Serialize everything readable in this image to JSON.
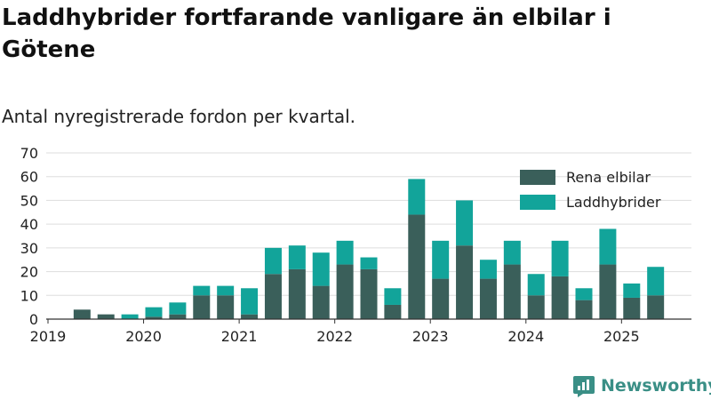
{
  "title": "Laddhybrider fortfarande vanligare än elbilar i Götene",
  "subtitle": "Antal nyregistrerade fordon per kvartal.",
  "brand": "Newsworthy",
  "colors": {
    "elbilar": "#3a5f5a",
    "laddhybrider": "#12a49a",
    "grid": "#dddddd",
    "text": "#222222"
  },
  "chart_data": {
    "type": "bar",
    "stacked": true,
    "categories": [
      "2019 Q1",
      "2019 Q2",
      "2019 Q3",
      "2019 Q4",
      "2020 Q1",
      "2020 Q2",
      "2020 Q3",
      "2020 Q4",
      "2021 Q1",
      "2021 Q2",
      "2021 Q3",
      "2021 Q4",
      "2022 Q1",
      "2022 Q2",
      "2022 Q3",
      "2022 Q4",
      "2023 Q1",
      "2023 Q2",
      "2023 Q3",
      "2023 Q4",
      "2024 Q1",
      "2024 Q2",
      "2024 Q3",
      "2024 Q4",
      "2025 Q1",
      "2025 Q2",
      "2025 Q3"
    ],
    "series": [
      {
        "name": "Rena elbilar",
        "values": [
          0,
          4,
          2,
          0,
          1,
          2,
          10,
          10,
          2,
          19,
          21,
          14,
          23,
          21,
          6,
          44,
          17,
          31,
          17,
          23,
          10,
          18,
          8,
          23,
          9,
          10,
          0
        ]
      },
      {
        "name": "Laddhybrider",
        "values": [
          0,
          0,
          0,
          2,
          4,
          5,
          4,
          4,
          11,
          11,
          10,
          14,
          10,
          5,
          7,
          15,
          16,
          19,
          8,
          10,
          9,
          15,
          5,
          15,
          6,
          12,
          0
        ]
      }
    ],
    "x_tick_labels": [
      "2019",
      "2020",
      "2021",
      "2022",
      "2023",
      "2024",
      "2025"
    ],
    "y_tick_labels": [
      "0",
      "10",
      "20",
      "30",
      "40",
      "50",
      "60",
      "70"
    ],
    "ylim": [
      0,
      70
    ],
    "grid": true,
    "legend": "top-right"
  }
}
